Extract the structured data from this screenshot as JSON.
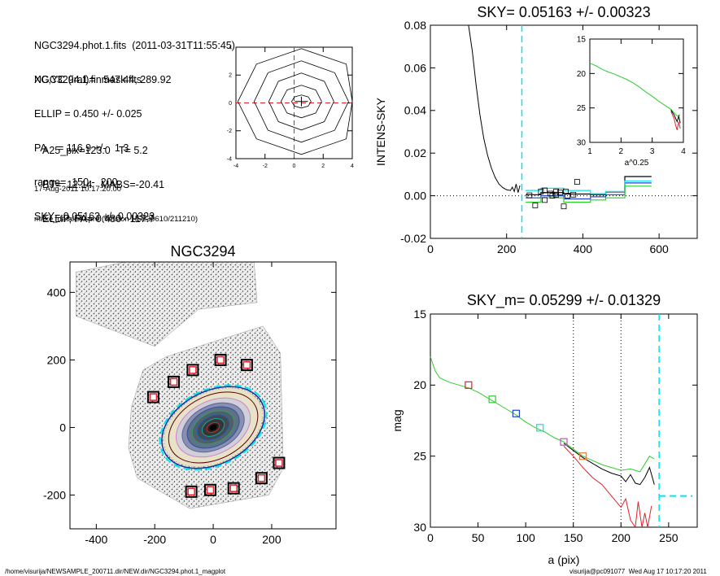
{
  "header": {
    "file_line": "NGC3294.phot.1.fits  (2011-03-31T11:55:45)",
    "mask_line": "NGC3294.1.finmask.fits",
    "xcyc": "XC,YC (iraf)=   547.44, 289.92",
    "ellip": "ELLIP = 0.450 +/- 0.025",
    "pa": "PA    = 116.9 +/-   1.3",
    "range": "range=  150.-  200.",
    "sky": "SKY= 0.05163 +/- 0.00323",
    "a25": "A25_pix=123.0   T= 5.2",
    "bt": "BT=  12.14   MABS=-20.41",
    "ellip_pa": "ELLIP, PA= 0.480   117.7",
    "date": "17-Aug-2011 10:17:20.00",
    "program": "make_datalist0.pro (version HS230610/211210)"
  },
  "footer": {
    "path": "/home/visurija/NEWSAMPLE_200711.dir/NEW.dir/NGC3294.phot.1_magplot",
    "user": "visurija@pc091077  Wed Aug 17 10:17:20 2011"
  },
  "colors": {
    "cyan": "#00e5ee",
    "red": "#e0202a",
    "green": "#2ecc2e",
    "blue": "#2244cc",
    "magenta": "#c050c0",
    "orange": "#e08040",
    "darkred": "#8b0000"
  },
  "chart_data": [
    {
      "id": "contour",
      "type": "contour",
      "title": "",
      "xlim": [
        -4,
        4
      ],
      "ylim": [
        -4,
        4
      ],
      "xticks": [
        "-4",
        "-2",
        "0",
        "2",
        "4"
      ],
      "yticks": [
        "-4",
        "-2",
        "0",
        "2",
        "4"
      ],
      "center": [
        0.5,
        0.1
      ]
    },
    {
      "id": "sky",
      "type": "line",
      "title": "SKY= 0.05163 +/- 0.00323",
      "ylabel": "INTENS-SKY",
      "xlim": [
        0,
        700
      ],
      "ylim": [
        -0.02,
        0.08
      ],
      "xticks": [
        "0",
        "200",
        "400",
        "600"
      ],
      "yticks": [
        "-0.02",
        "0.00",
        "0.02",
        "0.04",
        "0.06",
        "0.08"
      ],
      "vline": 240,
      "profile": {
        "x": [
          100,
          110,
          120,
          130,
          140,
          150,
          160,
          170,
          180,
          190,
          200,
          210,
          215,
          220,
          225,
          230,
          235
        ],
        "y": [
          0.08,
          0.068,
          0.052,
          0.038,
          0.027,
          0.019,
          0.013,
          0.0085,
          0.0055,
          0.0038,
          0.0028,
          0.0025,
          0.004,
          0.002,
          0.0055,
          0.0015,
          0.0048
        ]
      },
      "squares": [
        [
          260,
          0.0002
        ],
        [
          275,
          -0.0045
        ],
        [
          290,
          0.002
        ],
        [
          300,
          0.0025
        ],
        [
          315,
          0.001
        ],
        [
          320,
          0.0
        ],
        [
          330,
          0.002
        ],
        [
          340,
          0.0015
        ],
        [
          350,
          -0.005
        ],
        [
          355,
          0.002
        ],
        [
          360,
          0.0
        ],
        [
          375,
          0.0005
        ],
        [
          385,
          0.0065
        ],
        [
          300,
          -0.002
        ],
        [
          330,
          0.0005
        ]
      ],
      "series": [
        {
          "name": "",
          "color": "black",
          "x": [
            250,
            290,
            290,
            350,
            350,
            420,
            420,
            460,
            460,
            510,
            510,
            580
          ],
          "y": [
            0.0005,
            0.0005,
            0.0015,
            0.0015,
            0.0008,
            0.0008,
            0.0005,
            0.0005,
            0.0018,
            0.0018,
            0.009,
            0.009
          ]
        },
        {
          "name": "",
          "color": "blue",
          "x": [
            250,
            290,
            290,
            350,
            350,
            420,
            420,
            460,
            460,
            510,
            510,
            580
          ],
          "y": [
            -0.001,
            -0.001,
            0.0,
            0.0,
            -0.0015,
            -0.0015,
            -0.0005,
            -0.0005,
            0.0005,
            0.0005,
            0.006,
            0.006
          ]
        },
        {
          "name": "",
          "color": "cyan",
          "x": [
            250,
            290,
            290,
            350,
            350,
            420,
            420,
            460,
            460,
            510,
            510,
            580
          ],
          "y": [
            0.0025,
            0.0025,
            0.0035,
            0.0035,
            0.0025,
            0.0025,
            0.001,
            0.001,
            0.002,
            0.002,
            0.007,
            0.007
          ]
        },
        {
          "name": "",
          "color": "green",
          "x": [
            250,
            290,
            290,
            350,
            350,
            420,
            420,
            460,
            460,
            510,
            510,
            580
          ],
          "y": [
            -0.003,
            -0.003,
            -0.001,
            -0.001,
            -0.003,
            -0.003,
            -0.002,
            -0.002,
            -0.001,
            -0.001,
            0.0045,
            0.0045
          ]
        }
      ],
      "inset": {
        "xlabel": "a^0.25",
        "xlim": [
          1,
          4
        ],
        "ylim": [
          15,
          30
        ],
        "xticks": [
          "1",
          "2",
          "3",
          "4"
        ],
        "yticks": [
          "15",
          "20",
          "25",
          "30"
        ],
        "green": {
          "x": [
            1.0,
            1.2,
            1.4,
            1.6,
            1.8,
            2.0,
            2.2,
            2.4,
            2.6,
            2.8,
            3.0,
            3.2,
            3.4,
            3.6,
            3.7,
            3.8,
            3.9
          ],
          "y": [
            18.5,
            18.9,
            19.4,
            19.8,
            20.1,
            20.5,
            20.9,
            21.4,
            22.0,
            22.7,
            23.3,
            24.0,
            24.6,
            25.2,
            25.7,
            26.2,
            26.0
          ]
        }
      }
    },
    {
      "id": "image",
      "type": "scatter",
      "title": "NGC3294",
      "xlim": [
        -490,
        420
      ],
      "ylim": [
        -300,
        490
      ],
      "xticks": [
        "-400",
        "-200",
        "0",
        "200"
      ],
      "yticks": [
        "-200",
        "0",
        "200",
        "400"
      ],
      "boxes": [
        [
          -205,
          90
        ],
        [
          -135,
          135
        ],
        [
          -70,
          170
        ],
        [
          25,
          200
        ],
        [
          115,
          185
        ],
        [
          -75,
          -190
        ],
        [
          -10,
          -185
        ],
        [
          70,
          -180
        ],
        [
          165,
          -150
        ],
        [
          225,
          -105
        ]
      ],
      "ellipse": {
        "cx": 0,
        "cy": 0,
        "a": 225,
        "b": 130,
        "angle_deg": 27
      }
    },
    {
      "id": "mag",
      "type": "line",
      "title": "SKY_m=  0.05299 +/- 0.01329",
      "xlabel": "a (pix)",
      "ylabel": "mag",
      "xlim": [
        0,
        280
      ],
      "ylim": [
        30,
        15
      ],
      "xticks": [
        "0",
        "50",
        "100",
        "150",
        "200",
        "250"
      ],
      "yticks": [
        "15",
        "20",
        "25",
        "30"
      ],
      "vlines_dotted": [
        150,
        200
      ],
      "vline_cyan": 240,
      "squares": [
        {
          "x": 40,
          "y": 20.0,
          "c": "red"
        },
        {
          "x": 65,
          "y": 21.0,
          "c": "green"
        },
        {
          "x": 90,
          "y": 22.0,
          "c": "blue"
        },
        {
          "x": 115,
          "y": 23.0,
          "c": "cyan"
        },
        {
          "x": 140,
          "y": 24.0,
          "c": "magenta"
        },
        {
          "x": 160,
          "y": 25.0,
          "c": "orange"
        }
      ],
      "green": {
        "x": [
          0,
          5,
          10,
          20,
          30,
          40,
          50,
          60,
          70,
          80,
          90,
          100,
          110,
          120,
          130,
          140,
          150,
          160,
          170,
          180,
          190,
          200,
          210,
          220,
          230,
          235
        ],
        "y": [
          18.0,
          19.0,
          19.5,
          19.8,
          20.0,
          20.2,
          20.5,
          20.9,
          21.3,
          21.7,
          22.1,
          22.6,
          23.0,
          23.3,
          23.7,
          24.0,
          24.5,
          25.0,
          25.3,
          25.6,
          25.8,
          26.0,
          25.9,
          26.1,
          25.0,
          25.2
        ]
      },
      "black": {
        "x": [
          140,
          150,
          160,
          170,
          180,
          190,
          200,
          205,
          210,
          215,
          220,
          225,
          230,
          235
        ],
        "y": [
          24.1,
          24.6,
          25.1,
          25.5,
          25.9,
          26.2,
          26.4,
          26.8,
          26.3,
          26.9,
          27.0,
          26.5,
          25.8,
          27.0
        ]
      },
      "red": {
        "x": [
          140,
          150,
          160,
          170,
          180,
          190,
          195,
          200,
          205,
          210,
          215,
          218,
          222,
          225,
          228,
          232
        ],
        "y": [
          24.3,
          25.0,
          25.8,
          26.5,
          27.0,
          27.8,
          28.2,
          28.6,
          28.0,
          29.5,
          30.0,
          28.2,
          30.0,
          29.0,
          30.0,
          28.5
        ]
      },
      "cyan_tail": {
        "x": [
          240,
          250,
          260,
          275
        ],
        "y": [
          27.8,
          27.8,
          27.8,
          27.8
        ]
      }
    }
  ]
}
